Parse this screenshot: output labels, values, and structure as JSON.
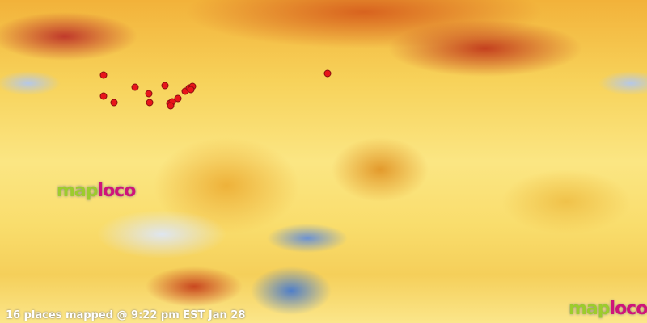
{
  "map": {
    "type": "world temperature anomaly map",
    "places_count": 16,
    "marker_color": "#e8141a"
  },
  "logo": {
    "part1": "map",
    "part2": "loco",
    "color1": "#9ccc2c",
    "color2": "#d0147a"
  },
  "status": "16 places mapped @ 9:22 pm EST Jan 28"
}
